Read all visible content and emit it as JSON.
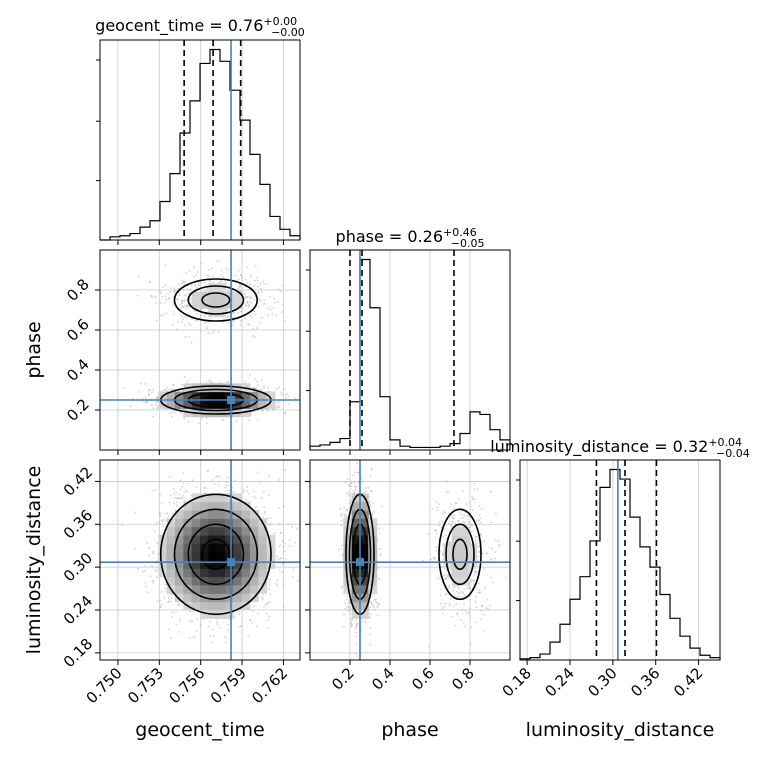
{
  "figure": {
    "type": "corner plot"
  },
  "colors": {
    "truth": "#4682b4",
    "grid": "#c8c8c8",
    "hist": "#000000",
    "points": "#9e9e9e"
  },
  "chart_data": {
    "type": "corner",
    "parameters": [
      {
        "name": "geocent_time",
        "label": "geocent_time",
        "title": {
          "prefix": "geocent_time = 0.76",
          "plus": "+0.00",
          "minus": "−0.00"
        },
        "range": [
          0.7487,
          0.7632
        ],
        "ticks": [
          0.75,
          0.753,
          0.756,
          0.759,
          0.762
        ],
        "tick_labels": [
          "0.750",
          "0.753",
          "0.756",
          "0.759",
          "0.762"
        ],
        "truth": 0.7582,
        "quantiles": [
          0.7548,
          0.7569,
          0.7589
        ],
        "hist": {
          "bins": 20,
          "counts": [
            0,
            3,
            4,
            6,
            12,
            18,
            36,
            62,
            100,
            130,
            165,
            178,
            167,
            140,
            112,
            80,
            52,
            22,
            10,
            4
          ]
        }
      },
      {
        "name": "phase",
        "label": "phase",
        "title": {
          "prefix": "phase = 0.26",
          "plus": "+0.46",
          "minus": "−0.05"
        },
        "range": [
          0.0,
          1.0
        ],
        "ticks": [
          0.2,
          0.4,
          0.6,
          0.8
        ],
        "tick_labels": [
          "0.2",
          "0.4",
          "0.6",
          "0.8"
        ],
        "truth": 0.25,
        "quantiles": [
          0.2,
          0.26,
          0.72
        ],
        "hist": {
          "bins": 20,
          "counts": [
            3,
            4,
            6,
            9,
            38,
            150,
            112,
            42,
            8,
            3,
            2,
            2,
            2,
            3,
            5,
            13,
            30,
            28,
            16,
            8
          ]
        }
      },
      {
        "name": "luminosity_distance",
        "label": "luminosity_distance",
        "title": {
          "prefix": "luminosity_distance = 0.32",
          "plus": "+0.04",
          "minus": "−0.04"
        },
        "range": [
          0.17,
          0.45
        ],
        "ticks": [
          0.18,
          0.24,
          0.3,
          0.36,
          0.42
        ],
        "tick_labels": [
          "0.18",
          "0.24",
          "0.30",
          "0.36",
          "0.42"
        ],
        "truth": 0.307,
        "quantiles": [
          0.277,
          0.317,
          0.361
        ],
        "hist": {
          "bins": 20,
          "counts": [
            1,
            2,
            5,
            15,
            30,
            51,
            70,
            100,
            145,
            160,
            152,
            120,
            95,
            78,
            55,
            35,
            20,
            10,
            4,
            2
          ]
        }
      }
    ],
    "grid": true
  }
}
